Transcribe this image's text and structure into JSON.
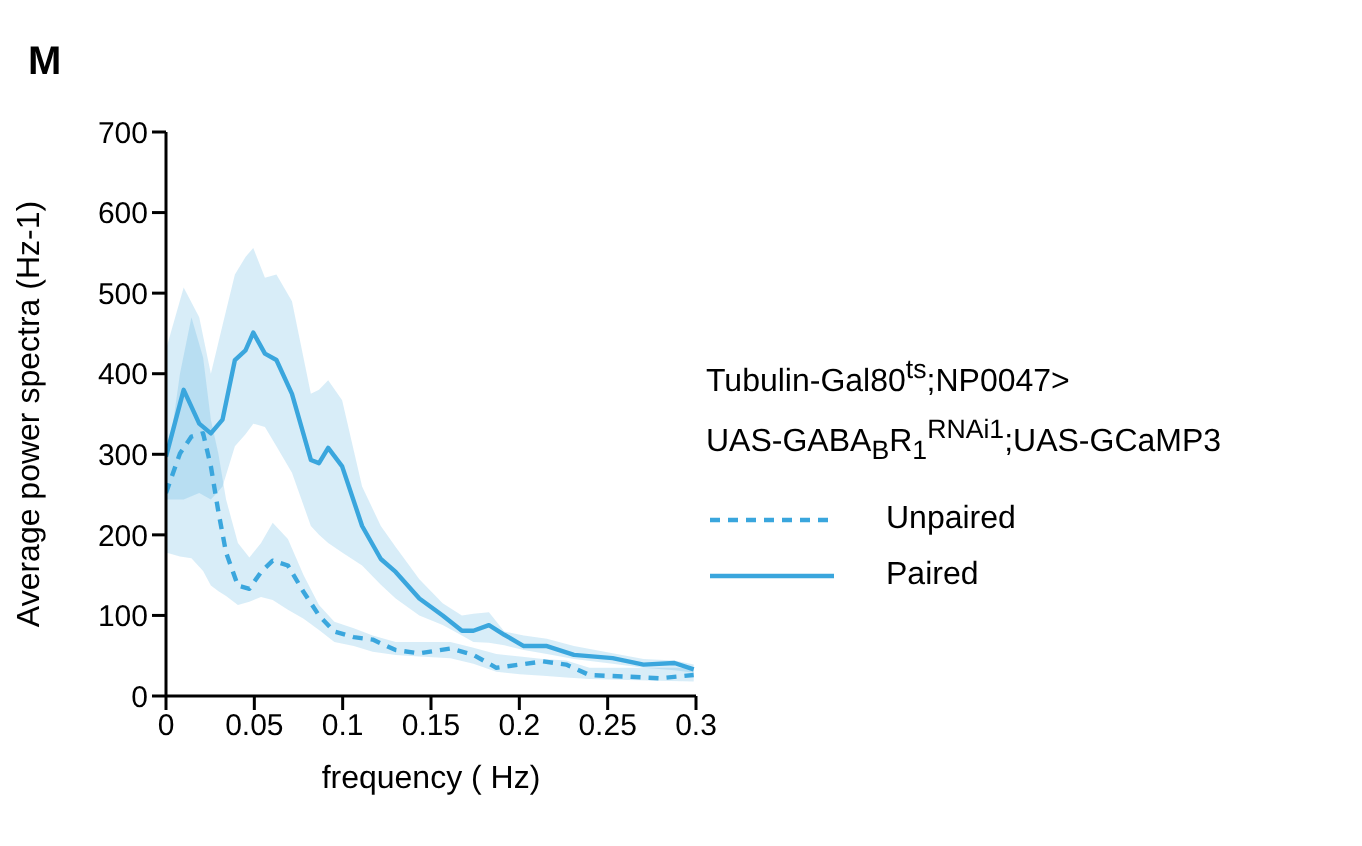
{
  "chart_data": {
    "type": "line",
    "title": "M",
    "xlabel": "frequency ( Hz)",
    "ylabel": "Average power  spectra (Hz-1)",
    "legend_title": "Tubulin-Gal80$^{ts}$;NP0047>\nUAS-GABA$_{B}$R$_{1}$$^{RNAi1}$;UAS-GCaMP3",
    "legend": "right",
    "xlim": [
      0,
      0.3
    ],
    "xticks": [
      0,
      0.05,
      0.1,
      0.15,
      0.2,
      0.25,
      0.3
    ],
    "ylim": [
      0,
      700
    ],
    "yticks": [
      0,
      100,
      200,
      300,
      400,
      500,
      600,
      700
    ],
    "series": [
      {
        "name": "Unpaired",
        "color": "#3aa6dd",
        "line_style": "dashed",
        "x": [
          0,
          0.0079,
          0.0144,
          0.021,
          0.0254,
          0.0297,
          0.034,
          0.0407,
          0.0472,
          0.0538,
          0.0604,
          0.069,
          0.0779,
          0.0866,
          0.0953,
          0.1063,
          0.117,
          0.13,
          0.1434,
          0.161,
          0.174,
          0.187,
          0.2003,
          0.2134,
          0.2265,
          0.2397,
          0.2616,
          0.279,
          0.2987
        ],
        "values": [
          252,
          301,
          322,
          326,
          285,
          228,
          178,
          137,
          133,
          154,
          168,
          162,
          129,
          100,
          80,
          73,
          70,
          57,
          53,
          59,
          51,
          35,
          39,
          43,
          39,
          26,
          24,
          22,
          26
        ],
        "lower": [
          178,
          173,
          171,
          155,
          137,
          130,
          124,
          113,
          117,
          123,
          119,
          107,
          96,
          82,
          67,
          62,
          55,
          51,
          49,
          47,
          40,
          30,
          27,
          25,
          23,
          21,
          20,
          19,
          18
        ],
        "upper": [
          277,
          400,
          470,
          420,
          343,
          300,
          244,
          190,
          172,
          190,
          215,
          195,
          150,
          113,
          92,
          84,
          75,
          67,
          67,
          67,
          60,
          52,
          49,
          46,
          44,
          35,
          35,
          35,
          35
        ]
      },
      {
        "name": "Paired",
        "color": "#3aa6dd",
        "line_style": "solid",
        "x": [
          0,
          0.01,
          0.0188,
          0.0254,
          0.032,
          0.039,
          0.045,
          0.0494,
          0.056,
          0.0625,
          0.0713,
          0.082,
          0.0866,
          0.0918,
          0.0997,
          0.111,
          0.1216,
          0.13,
          0.1434,
          0.1566,
          0.1675,
          0.174,
          0.1828,
          0.1915,
          0.2025,
          0.2156,
          0.2309,
          0.2528,
          0.2703,
          0.2878,
          0.2987
        ],
        "values": [
          297,
          380,
          338,
          326,
          343,
          417,
          429,
          451,
          425,
          417,
          375,
          293,
          289,
          308,
          285,
          211,
          170,
          154,
          121,
          100,
          81,
          81,
          88,
          76,
          62,
          62,
          51,
          47,
          39,
          41,
          33
        ],
        "lower": [
          244,
          244,
          252,
          244,
          260,
          310,
          325,
          338,
          334,
          310,
          277,
          211,
          200,
          190,
          178,
          162,
          138,
          121,
          100,
          88,
          75,
          67,
          66,
          63,
          57,
          52,
          46,
          40,
          35,
          32,
          29
        ],
        "upper": [
          430,
          507,
          470,
          400,
          460,
          523,
          545,
          556,
          519,
          523,
          490,
          375,
          380,
          392,
          367,
          260,
          211,
          185,
          145,
          115,
          100,
          102,
          104,
          80,
          75,
          71,
          62,
          53,
          46,
          44,
          39
        ]
      }
    ]
  }
}
